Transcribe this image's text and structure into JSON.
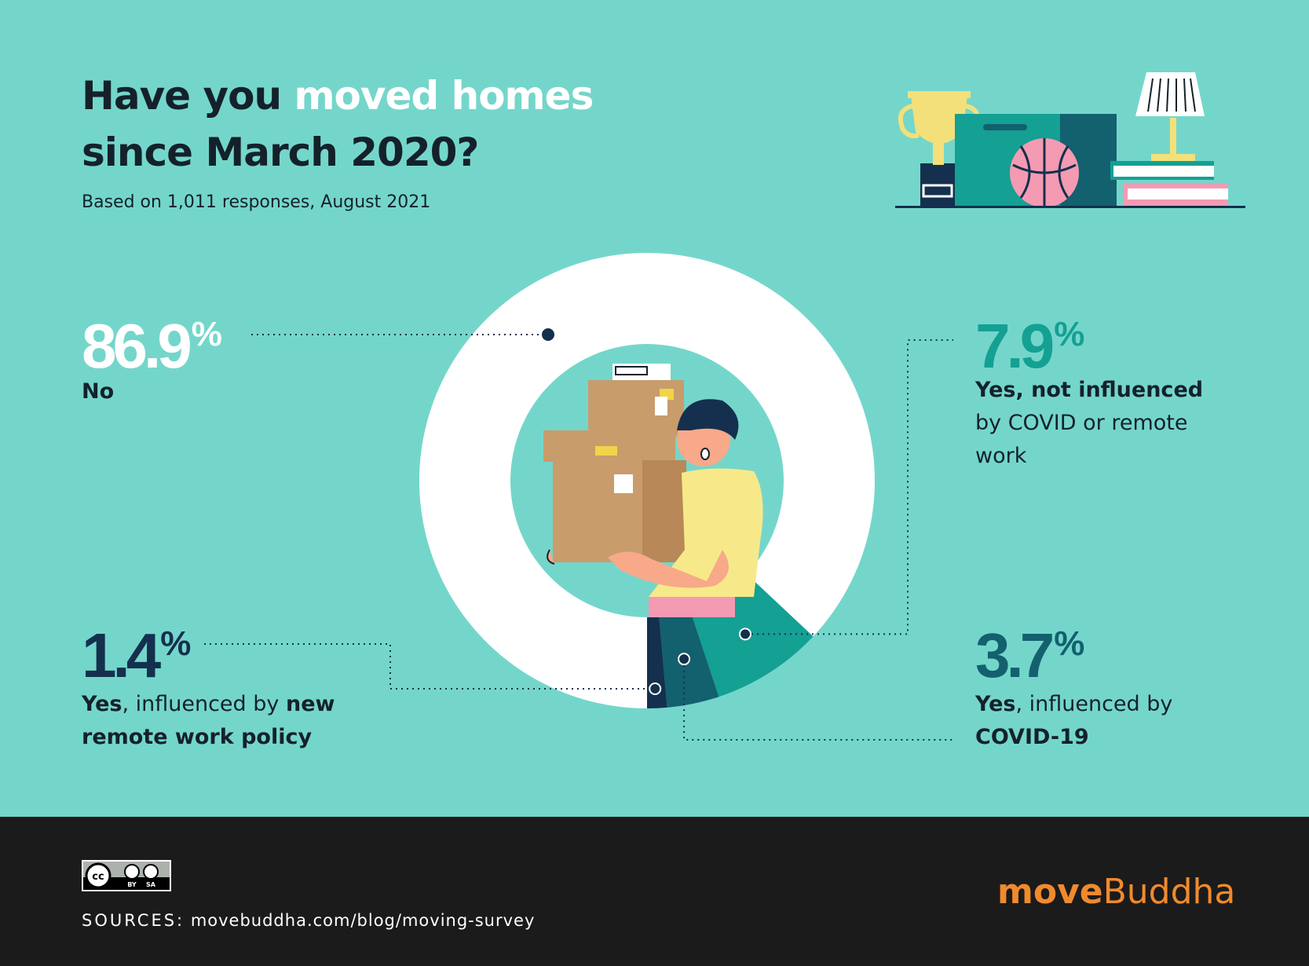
{
  "header": {
    "title_part1": "Have you ",
    "title_highlight": "moved homes",
    "title_part2": "since March 2020?",
    "subtitle": "Based on 1,011 responses, August 2021"
  },
  "chart_data": {
    "type": "pie",
    "style": "donut",
    "title": "Have you moved homes since March 2020?",
    "subtitle": "Based on 1,011 responses, August 2021",
    "slices": [
      {
        "label": "No",
        "value": 86.9,
        "color": "#ffffff"
      },
      {
        "label": "Yes, not influenced by COVID or remote work",
        "value": 7.9,
        "color": "#14a093"
      },
      {
        "label": "Yes, influenced by COVID-19",
        "value": 3.7,
        "color": "#13606e"
      },
      {
        "label": "Yes, influenced by new remote work policy",
        "value": 1.4,
        "color": "#14304e"
      }
    ]
  },
  "callouts": {
    "no": {
      "value": "86.9",
      "sign": "%",
      "label": "No"
    },
    "not_influenced": {
      "value": "7.9",
      "sign": "%",
      "label_bold": "Yes, not influenced",
      "label_rest": "by COVID or remote work"
    },
    "remote": {
      "value": "1.4",
      "sign": "%",
      "label_b1": "Yes",
      "label_mid": ", influenced by ",
      "label_b2": "new remote work policy"
    },
    "covid": {
      "value": "3.7",
      "sign": "%",
      "label_b1": "Yes",
      "label_mid": ", influenced by",
      "label_b2": "COVID-19"
    }
  },
  "footer": {
    "license_by": "BY",
    "license_sa": "SA",
    "license_cc": "cc",
    "sources_key": "SOURCES:",
    "sources_value": "movebuddha.com/blog/moving-survey",
    "brand_part1": "move",
    "brand_part2": "Buddha"
  },
  "colors": {
    "background": "#74d6cb",
    "text_dark": "#14212b",
    "highlight": "#ffffff",
    "brand_orange": "#f08a2c"
  }
}
